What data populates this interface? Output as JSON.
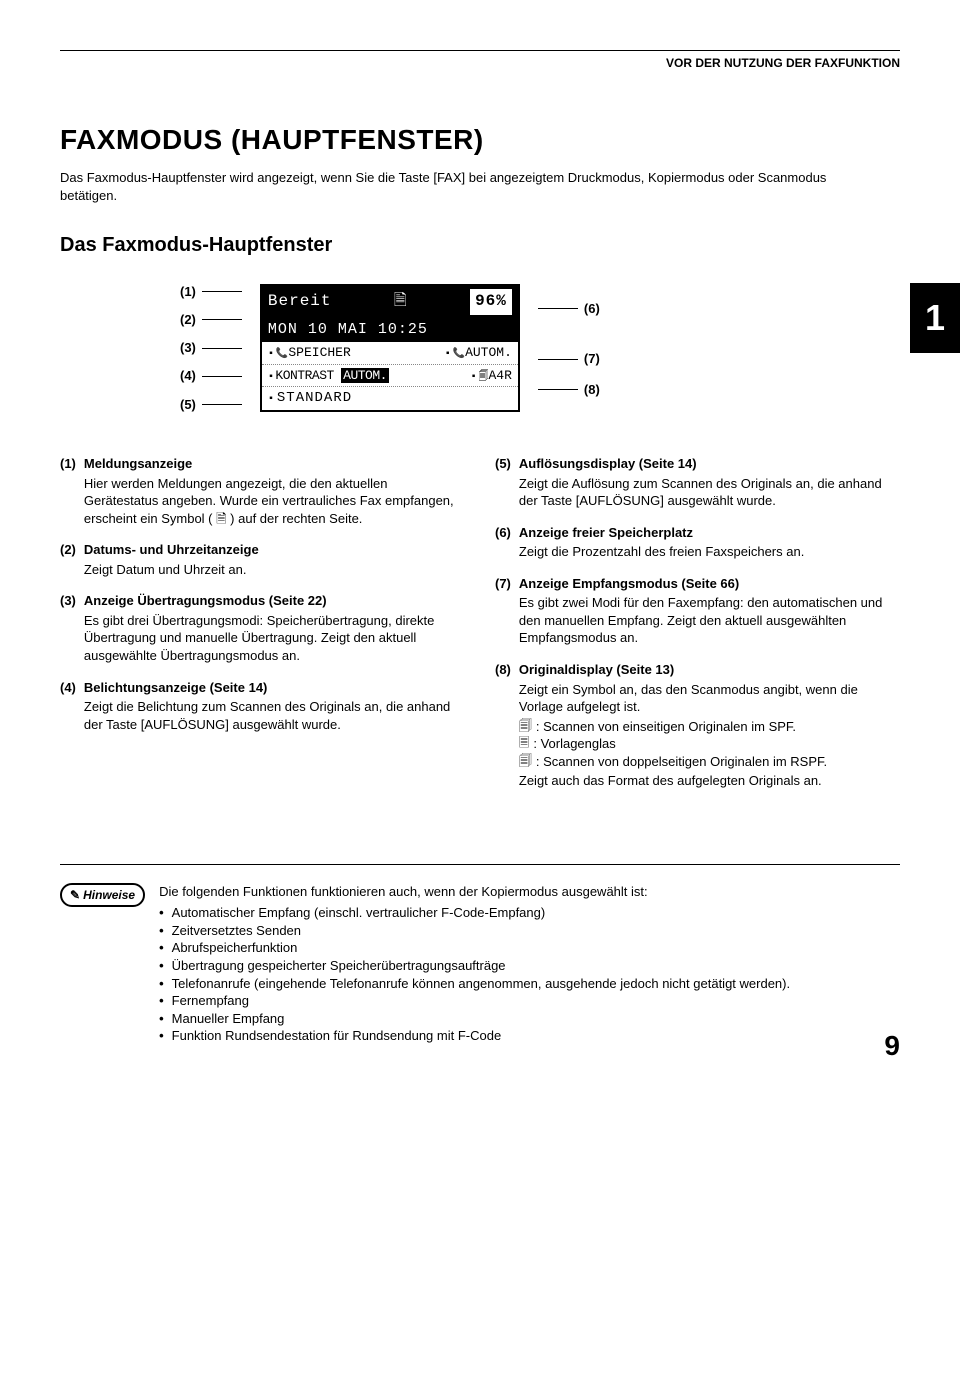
{
  "header": {
    "running": "VOR DER NUTZUNG DER FAXFUNKTION"
  },
  "title": "FAXMODUS (HAUPTFENSTER)",
  "intro": "Das Faxmodus-Hauptfenster wird angezeigt, wenn Sie die Taste [FAX] bei angezeigtem Druckmodus, Kopiermodus oder Scanmodus betätigen.",
  "subtitle": "Das Faxmodus-Hauptfenster",
  "chapter_tab": "1",
  "display": {
    "row1_left": "Bereit",
    "row1_icon": "🗎",
    "row1_right": "96%",
    "row2": "MON 10 MAI  10:25",
    "row3_left": "SPEICHER",
    "row3_right": "AUTOM.",
    "row4_left_a": "KONTRAST",
    "row4_left_b": "AUTOM.",
    "row4_right": "A4R",
    "row5": "STANDARD"
  },
  "callouts_left": [
    "(1)",
    "(2)",
    "(3)",
    "(4)",
    "(5)"
  ],
  "callouts_right": [
    "(6)",
    "(7)",
    "(8)"
  ],
  "defs_left": [
    {
      "num": "(1)",
      "head": "Meldungsanzeige",
      "body": "Hier werden Meldungen angezeigt, die den aktuellen Gerätestatus angeben.\nWurde ein vertrauliches Fax empfangen, erscheint ein Symbol ( 🗎 ) auf der rechten Seite."
    },
    {
      "num": "(2)",
      "head": "Datums- und Uhrzeitanzeige",
      "body": "Zeigt Datum und Uhrzeit an."
    },
    {
      "num": "(3)",
      "head": "Anzeige Übertragungsmodus (Seite 22)",
      "body": "Es gibt drei Übertragungsmodi: Speicherübertragung, direkte Übertragung und manuelle Übertragung. Zeigt den aktuell ausgewählte Übertragungsmodus an."
    },
    {
      "num": "(4)",
      "head": "Belichtungsanzeige (Seite 14)",
      "body": "Zeigt die Belichtung zum Scannen des Originals an, die anhand der Taste [AUFLÖSUNG] ausgewählt wurde."
    }
  ],
  "defs_right": [
    {
      "num": "(5)",
      "head": "Auflösungsdisplay (Seite 14)",
      "body": "Zeigt die Auflösung zum Scannen des Originals an, die anhand der Taste [AUFLÖSUNG] ausgewählt wurde."
    },
    {
      "num": "(6)",
      "head": "Anzeige freier Speicherplatz",
      "body": "Zeigt die Prozentzahl des freien Faxspeichers an."
    },
    {
      "num": "(7)",
      "head": "Anzeige Empfangsmodus (Seite 66)",
      "body": "Es gibt zwei Modi für den Faxempfang: den automatischen und den manuellen Empfang. Zeigt den aktuell ausgewählten Empfangsmodus an."
    },
    {
      "num": "(8)",
      "head": "Originaldisplay (Seite 13)",
      "body": "Zeigt ein Symbol an, das den Scanmodus angibt, wenn die Vorlage aufgelegt ist.",
      "items": [
        {
          "g": "🗐",
          "t": ": Scannen von einseitigen Originalen im SPF."
        },
        {
          "g": "🗏",
          "t": ": Vorlagenglas"
        },
        {
          "g": "🗐",
          "t": ": Scannen von doppelseitigen Originalen im RSPF."
        }
      ],
      "tail": "Zeigt auch das Format des aufgelegten Originals an."
    }
  ],
  "note": {
    "label": "Hinweise",
    "lead": "Die folgenden Funktionen funktionieren auch, wenn der Kopiermodus ausgewählt ist:",
    "items": [
      "Automatischer Empfang (einschl. vertraulicher F-Code-Empfang)",
      "Zeitversetztes Senden",
      "Abrufspeicherfunktion",
      "Übertragung gespeicherter Speicherübertragungsaufträge",
      "Telefonanrufe (eingehende Telefonanrufe können angenommen, ausgehende jedoch nicht getätigt werden).",
      "Fernempfang",
      "Manueller Empfang",
      "Funktion Rundsendestation für Rundsendung mit F-Code"
    ]
  },
  "pagenum": "9"
}
